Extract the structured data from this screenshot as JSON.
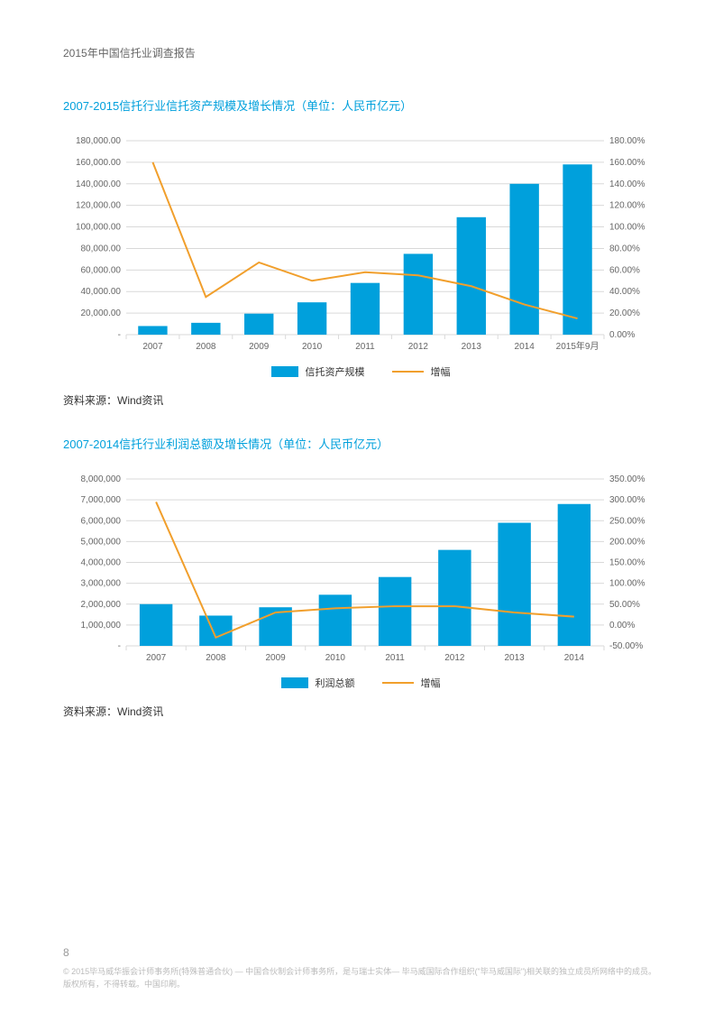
{
  "header": {
    "title": "2015年中国信托业调查报告"
  },
  "chart1": {
    "type": "combo-bar-line",
    "title": "2007-2015信托行业信托资产规模及增长情况（单位：人民币亿元）",
    "categories": [
      "2007",
      "2008",
      "2009",
      "2010",
      "2011",
      "2012",
      "2013",
      "2014",
      "2015年9月"
    ],
    "bar_values": [
      8000,
      11000,
      19500,
      30000,
      48000,
      75000,
      109000,
      140000,
      158000
    ],
    "line_values": [
      160,
      35,
      67,
      50,
      58,
      55,
      45,
      28,
      15
    ],
    "left_axis": {
      "min": 0,
      "max": 180000,
      "step": 20000,
      "labels": [
        "-",
        "20,000.00",
        "40,000.00",
        "60,000.00",
        "80,000.00",
        "100,000.00",
        "120,000.00",
        "140,000.00",
        "160,000.00",
        "180,000.00"
      ]
    },
    "right_axis": {
      "min": 0,
      "max": 180,
      "step": 20,
      "labels": [
        "0.00%",
        "20.00%",
        "40.00%",
        "60.00%",
        "80.00%",
        "100.00%",
        "120.00%",
        "140.00%",
        "160.00%",
        "180.00%"
      ]
    },
    "bar_color": "#00a0dc",
    "line_color": "#f19f2c",
    "grid_color": "#d9d9d9",
    "text_color": "#666666",
    "axis_fontsize": 10,
    "legend": {
      "bar_label": "信托资产规模",
      "line_label": "增幅"
    },
    "source": "资料来源：Wind资讯"
  },
  "chart2": {
    "type": "combo-bar-line",
    "title": "2007-2014信托行业利润总额及增长情况（单位：人民币亿元）",
    "categories": [
      "2007",
      "2008",
      "2009",
      "2010",
      "2011",
      "2012",
      "2013",
      "2014"
    ],
    "bar_values": [
      2000000,
      1450000,
      1850000,
      2450000,
      3300000,
      4600000,
      5900000,
      6800000
    ],
    "line_values": [
      295,
      -30,
      30,
      40,
      45,
      45,
      30,
      20
    ],
    "left_axis": {
      "min": 0,
      "max": 8000000,
      "step": 1000000,
      "labels": [
        "-",
        "1,000,000",
        "2,000,000",
        "3,000,000",
        "4,000,000",
        "5,000,000",
        "6,000,000",
        "7,000,000",
        "8,000,000"
      ]
    },
    "right_axis": {
      "min": -50,
      "max": 350,
      "step": 50,
      "labels": [
        "-50.00%",
        "0.00%",
        "50.00%",
        "100.00%",
        "150.00%",
        "200.00%",
        "250.00%",
        "300.00%",
        "350.00%"
      ]
    },
    "bar_color": "#00a0dc",
    "line_color": "#f19f2c",
    "grid_color": "#d9d9d9",
    "text_color": "#666666",
    "axis_fontsize": 10,
    "legend": {
      "bar_label": "利润总额",
      "line_label": "增幅"
    },
    "source": "资料来源：Wind资讯"
  },
  "page_number": "8",
  "footer": "© 2015毕马威华振会计师事务所(特殊普通合伙) — 中国合伙制会计师事务所，是与瑞士实体— 毕马威国际合作组织(\"毕马威国际\")相关联的独立成员所网络中的成员。版权所有，不得转载。中国印刷。"
}
